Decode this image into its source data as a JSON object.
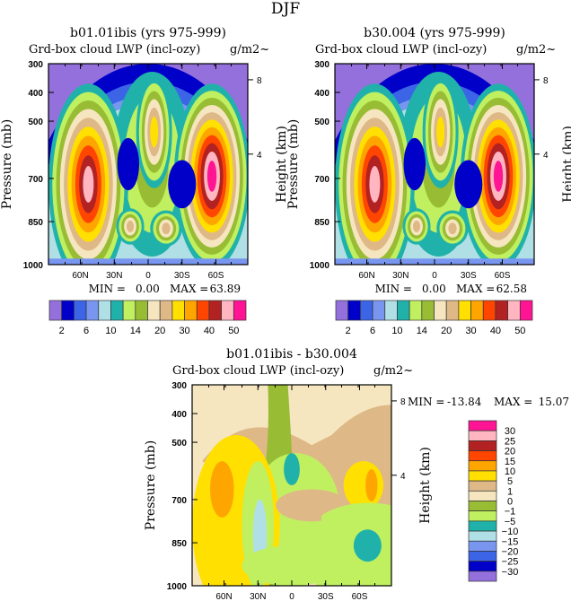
{
  "figure_title": "DJF",
  "colors": [
    "#9370DB",
    "#0000C8",
    "#3C64E6",
    "#7896F0",
    "#B0E0E6",
    "#20B2AA",
    "#C0F060",
    "#98BC34",
    "#F5E6C0",
    "#DEB887",
    "#FFE000",
    "#FFA500",
    "#FF4500",
    "#B22222",
    "#FFB6C1",
    "#FF1493"
  ],
  "chart_data": [
    {
      "type": "heatmap",
      "title": "b01.01ibis (yrs 975-999)",
      "subtitle": "Grd-box cloud LWP (incl-ozy)",
      "subtitle_right": "g/m2~",
      "ylabel": "Pressure (mb)",
      "ylabel_right": "Height (km)",
      "yticks": [
        "300",
        "400",
        "500",
        "700",
        "850",
        "1000"
      ],
      "yticks_right": [
        "8",
        "4"
      ],
      "xticks": [
        "60N",
        "30N",
        "0",
        "30S",
        "60S"
      ],
      "min_label": "MIN =",
      "min_value": "0.00",
      "max_label": "MAX =",
      "max_value": "63.89",
      "levels": [
        2,
        4,
        6,
        8,
        10,
        12,
        14,
        16,
        20,
        25,
        30,
        35,
        40,
        45,
        50
      ],
      "colorbar_labels": [
        "2",
        "6",
        "10",
        "14",
        "20",
        "30",
        "40",
        "50"
      ]
    },
    {
      "type": "heatmap",
      "title": "b30.004 (yrs 975-999)",
      "subtitle": "Grd-box cloud LWP (incl-ozy)",
      "subtitle_right": "g/m2~",
      "ylabel": "Pressure (mb)",
      "ylabel_right": "Height (km)",
      "yticks": [
        "300",
        "400",
        "500",
        "700",
        "850",
        "1000"
      ],
      "yticks_right": [
        "8",
        "4"
      ],
      "xticks": [
        "60N",
        "30N",
        "0",
        "30S",
        "60S"
      ],
      "min_label": "MIN =",
      "min_value": "0.00",
      "max_label": "MAX =",
      "max_value": "62.58",
      "levels": [
        2,
        4,
        6,
        8,
        10,
        12,
        14,
        16,
        20,
        25,
        30,
        35,
        40,
        45,
        50
      ],
      "colorbar_labels": [
        "2",
        "6",
        "10",
        "14",
        "20",
        "30",
        "40",
        "50"
      ]
    },
    {
      "type": "heatmap",
      "title": "b01.01ibis - b30.004",
      "subtitle": "Grd-box cloud LWP (incl-ozy)",
      "subtitle_right": "g/m2~",
      "ylabel": "Pressure (mb)",
      "ylabel_right": "Height (km)",
      "yticks": [
        "300",
        "400",
        "500",
        "700",
        "850",
        "1000"
      ],
      "yticks_right": [
        "8",
        "4"
      ],
      "xticks": [
        "60N",
        "30N",
        "0",
        "30S",
        "60S"
      ],
      "min_label": "MIN =",
      "min_value": "-13.84",
      "max_label": "MAX =",
      "max_value": "15.07",
      "levels": [
        -30,
        -25,
        -20,
        -15,
        -10,
        -5,
        -1,
        0,
        1,
        5,
        10,
        15,
        20,
        25,
        30
      ],
      "colorbar_labels": [
        "30",
        "25",
        "20",
        "15",
        "10",
        "5",
        "1",
        "0",
        "-1",
        "-5",
        "-10",
        "-15",
        "-20",
        "-25",
        "-30"
      ]
    }
  ]
}
